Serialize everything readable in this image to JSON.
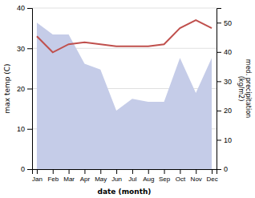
{
  "chart_data": {
    "type": "line",
    "categories": [
      "Jan",
      "Feb",
      "Mar",
      "Apr",
      "May",
      "Jun",
      "Jul",
      "Aug",
      "Sep",
      "Oct",
      "Nov",
      "Dec"
    ],
    "series": [
      {
        "type": "area",
        "axis": "y2",
        "color": "#c5cce8",
        "values": [
          50,
          46,
          46,
          36,
          34,
          20,
          24,
          23,
          23,
          38,
          26,
          38
        ]
      },
      {
        "type": "line",
        "color": "#c0504d",
        "values": [
          33,
          29,
          31,
          31.5,
          31,
          30.5,
          30.5,
          30.5,
          31,
          35,
          37,
          35
        ]
      }
    ],
    "xlabel": "date (month)",
    "ylabel": "max temp (C)",
    "y2label": "med. precipitation\n(kg/m2)",
    "ylim": [
      0,
      40
    ],
    "yticks": [
      0,
      10,
      20,
      30,
      40
    ],
    "y2lim": [
      0,
      55
    ],
    "y2ticks": [
      0,
      10,
      20,
      30,
      40,
      50
    ],
    "grid": true
  }
}
